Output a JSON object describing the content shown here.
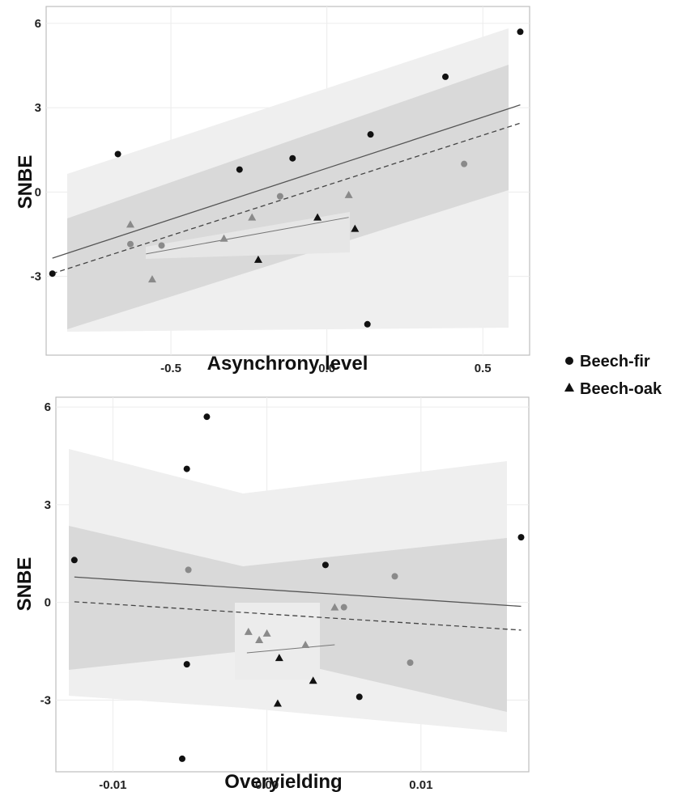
{
  "chart_data": [
    {
      "type": "scatter",
      "xlabel": "Asynchrony level",
      "ylabel": "SNBE",
      "xlim": [
        -0.9,
        0.65
      ],
      "ylim": [
        -5.8,
        6.6
      ],
      "x_ticks": [
        -0.5,
        0.0,
        0.5
      ],
      "x_tick_labels": [
        "-0.5",
        "0.0",
        "0.5"
      ],
      "y_ticks": [
        -3,
        0,
        3,
        6
      ],
      "y_tick_labels": [
        "-3",
        "0",
        "3",
        "6"
      ],
      "grid": true,
      "series": [
        {
          "name": "Beech-fir",
          "marker": "circle",
          "points": [
            {
              "x": -0.88,
              "y": -2.9,
              "tone": "black"
            },
            {
              "x": -0.67,
              "y": 1.35,
              "tone": "black"
            },
            {
              "x": -0.28,
              "y": 0.8,
              "tone": "black"
            },
            {
              "x": -0.11,
              "y": 1.2,
              "tone": "black"
            },
            {
              "x": 0.14,
              "y": 2.05,
              "tone": "black"
            },
            {
              "x": 0.38,
              "y": 4.1,
              "tone": "black"
            },
            {
              "x": 0.62,
              "y": 5.7,
              "tone": "black"
            },
            {
              "x": 0.13,
              "y": -4.7,
              "tone": "black"
            },
            {
              "x": -0.63,
              "y": -1.85,
              "tone": "grey"
            },
            {
              "x": -0.53,
              "y": -1.9,
              "tone": "grey"
            },
            {
              "x": -0.15,
              "y": -0.15,
              "tone": "grey"
            },
            {
              "x": 0.44,
              "y": 1.0,
              "tone": "grey"
            }
          ],
          "fit_line": {
            "x": [
              -0.88,
              0.62
            ],
            "y": [
              -2.35,
              3.1
            ]
          },
          "band_line": {
            "x": [
              -0.88,
              0.62
            ],
            "y": [
              -2.9,
              2.45
            ]
          }
        },
        {
          "name": "Beech-oak",
          "marker": "triangle",
          "points": [
            {
              "x": -0.63,
              "y": -1.15,
              "tone": "grey"
            },
            {
              "x": -0.56,
              "y": -3.1,
              "tone": "grey"
            },
            {
              "x": -0.33,
              "y": -1.65,
              "tone": "grey"
            },
            {
              "x": -0.24,
              "y": -0.9,
              "tone": "grey"
            },
            {
              "x": 0.07,
              "y": -0.1,
              "tone": "grey"
            },
            {
              "x": -0.22,
              "y": -2.4,
              "tone": "black"
            },
            {
              "x": -0.03,
              "y": -0.9,
              "tone": "black"
            },
            {
              "x": 0.09,
              "y": -1.3,
              "tone": "black"
            }
          ],
          "fit_line": {
            "x": [
              -0.58,
              0.07
            ],
            "y": [
              -2.2,
              -0.9
            ]
          }
        }
      ]
    },
    {
      "type": "scatter",
      "xlabel": "Overyielding",
      "ylabel": "SNBE",
      "xlim": [
        -0.0137,
        0.017
      ],
      "ylim": [
        -5.2,
        6.3
      ],
      "x_ticks": [
        -0.01,
        0.0,
        0.01
      ],
      "x_tick_labels": [
        "-0.01",
        "0.00",
        "0.01"
      ],
      "y_ticks": [
        -3,
        0,
        3,
        6
      ],
      "y_tick_labels": [
        "-3",
        "0",
        "3",
        "6"
      ],
      "grid": true,
      "series": [
        {
          "name": "Beech-fir",
          "marker": "circle",
          "points": [
            {
              "x": -0.0125,
              "y": 1.3,
              "tone": "black"
            },
            {
              "x": -0.0052,
              "y": 4.1,
              "tone": "black"
            },
            {
              "x": -0.0039,
              "y": 5.7,
              "tone": "black"
            },
            {
              "x": 0.0038,
              "y": 1.15,
              "tone": "black"
            },
            {
              "x": 0.0165,
              "y": 2.0,
              "tone": "black"
            },
            {
              "x": -0.0052,
              "y": -1.9,
              "tone": "black"
            },
            {
              "x": 0.006,
              "y": -2.9,
              "tone": "black"
            },
            {
              "x": -0.0055,
              "y": -4.8,
              "tone": "black"
            },
            {
              "x": -0.0051,
              "y": 1.0,
              "tone": "grey"
            },
            {
              "x": 0.005,
              "y": -0.15,
              "tone": "grey"
            },
            {
              "x": 0.0083,
              "y": 0.8,
              "tone": "grey"
            },
            {
              "x": 0.0093,
              "y": -1.85,
              "tone": "grey"
            }
          ],
          "fit_line": {
            "x": [
              -0.0125,
              0.0165
            ],
            "y": [
              0.78,
              -0.12
            ]
          },
          "band_line": {
            "x": [
              -0.0125,
              0.0165
            ],
            "y": [
              0.02,
              -0.85
            ]
          }
        },
        {
          "name": "Beech-oak",
          "marker": "triangle",
          "points": [
            {
              "x": -0.0012,
              "y": -0.9,
              "tone": "grey"
            },
            {
              "x": -0.0005,
              "y": -1.15,
              "tone": "grey"
            },
            {
              "x": 0.0,
              "y": -0.95,
              "tone": "grey"
            },
            {
              "x": 0.0025,
              "y": -1.3,
              "tone": "grey"
            },
            {
              "x": 0.0044,
              "y": -0.15,
              "tone": "grey"
            },
            {
              "x": 0.0008,
              "y": -1.7,
              "tone": "black"
            },
            {
              "x": 0.003,
              "y": -2.4,
              "tone": "black"
            },
            {
              "x": 0.0007,
              "y": -3.1,
              "tone": "black"
            }
          ],
          "fit_line": {
            "x": [
              -0.0013,
              0.0044
            ],
            "y": [
              -1.55,
              -1.3
            ]
          }
        }
      ]
    }
  ],
  "legend": {
    "entries": [
      {
        "label": "Beech-fir",
        "marker": "circle"
      },
      {
        "label": "Beech-oak",
        "marker": "triangle"
      }
    ],
    "placement": "right"
  },
  "colors": {
    "point_black": "#111111",
    "point_grey": "#8a8a8a",
    "band_outer": "#efefef",
    "band_inner": "#d9d9d9",
    "panel_border": "#bdbdbd",
    "grid": "#ececec"
  }
}
